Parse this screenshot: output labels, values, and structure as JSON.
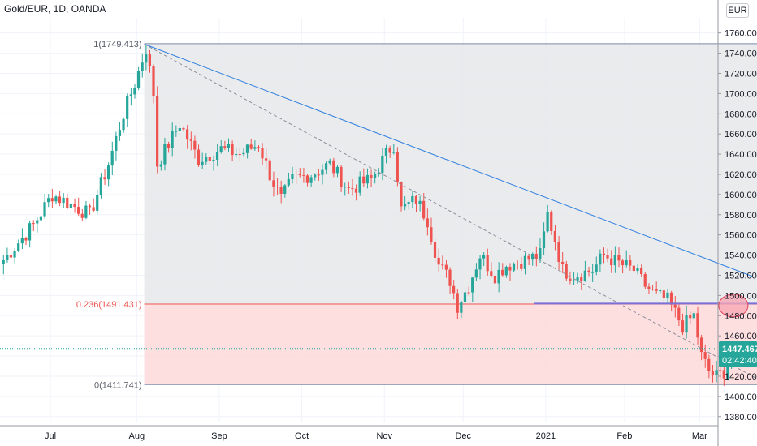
{
  "header": {
    "symbol_title": "Gold/EUR, 1D, OANDA"
  },
  "currency_button": {
    "label": "EUR"
  },
  "price_badge": {
    "price": "1447.467",
    "countdown": "02:42:40"
  },
  "colors": {
    "up": "#26a69a",
    "down": "#ef5350",
    "trendline": "#2e7fe0",
    "fib_upper_fill": "#e6e7ea",
    "fib_lower_fill": "#fddcdc",
    "fib_line_gray": "#7b8aa6",
    "fib_line_red": "#ef5350",
    "ellipse_fill": "#f6a8b4",
    "ellipse_stroke": "#e0455d",
    "support_line": "#7b6fd6",
    "badge_bg": "#26a69a"
  },
  "chart_data": {
    "type": "candlestick",
    "title": "Gold/EUR, 1D, OANDA",
    "ylim": [
      1375,
      1775
    ],
    "y_ticks": [
      "1380.000",
      "1400.000",
      "1420.000",
      "1440.000",
      "1460.000",
      "1480.000",
      "1500.000",
      "1520.000",
      "1540.000",
      "1560.000",
      "1580.000",
      "1600.000",
      "1620.000",
      "1640.000",
      "1660.000",
      "1680.000",
      "1700.000",
      "1720.000",
      "1740.000",
      "1760.000"
    ],
    "x_ticks": [
      {
        "label": "Jul",
        "index": 13
      },
      {
        "label": "Aug",
        "index": 36
      },
      {
        "label": "Sep",
        "index": 58
      },
      {
        "label": "Oct",
        "index": 80
      },
      {
        "label": "Nov",
        "index": 102
      },
      {
        "label": "Dec",
        "index": 123
      },
      {
        "label": "2021",
        "index": 145
      },
      {
        "label": "Feb",
        "index": 166
      },
      {
        "label": "Mar",
        "index": 186
      }
    ],
    "fib_levels": [
      {
        "label": "1(1749.413)",
        "value": 1749.413
      },
      {
        "label": "0.236(1491.431)",
        "value": 1491.431
      },
      {
        "label": "0(1411.741)",
        "value": 1411.741
      }
    ],
    "fib_start_index": 38,
    "fib_end_index": 204,
    "current_price": 1447.467,
    "trendline_solid": {
      "from": {
        "index": 38,
        "value": 1749
      },
      "to": {
        "index": 200,
        "value": 1519
      }
    },
    "trendline_dashed": {
      "from": {
        "index": 38,
        "value": 1749
      },
      "to": {
        "index": 204,
        "value": 1412
      }
    },
    "support_line": {
      "from": {
        "index": 142,
        "value": 1492
      },
      "to": {
        "index": 204,
        "value": 1492
      }
    },
    "highlight_ellipse": {
      "index": 195,
      "value": 1490
    },
    "anchors": [
      [
        0,
        1535
      ],
      [
        8,
        1570
      ],
      [
        13,
        1600
      ],
      [
        18,
        1590
      ],
      [
        23,
        1580
      ],
      [
        28,
        1630
      ],
      [
        32,
        1680
      ],
      [
        35,
        1710
      ],
      [
        38,
        1745
      ],
      [
        40,
        1700
      ],
      [
        41,
        1630
      ],
      [
        44,
        1650
      ],
      [
        47,
        1670
      ],
      [
        52,
        1635
      ],
      [
        58,
        1645
      ],
      [
        63,
        1640
      ],
      [
        68,
        1650
      ],
      [
        71,
        1620
      ],
      [
        74,
        1595
      ],
      [
        77,
        1615
      ],
      [
        82,
        1620
      ],
      [
        87,
        1630
      ],
      [
        92,
        1605
      ],
      [
        98,
        1615
      ],
      [
        102,
        1640
      ],
      [
        104,
        1650
      ],
      [
        106,
        1585
      ],
      [
        110,
        1595
      ],
      [
        113,
        1575
      ],
      [
        116,
        1530
      ],
      [
        119,
        1515
      ],
      [
        121,
        1490
      ],
      [
        124,
        1510
      ],
      [
        127,
        1540
      ],
      [
        131,
        1520
      ],
      [
        134,
        1530
      ],
      [
        139,
        1535
      ],
      [
        143,
        1540
      ],
      [
        145,
        1580
      ],
      [
        147,
        1555
      ],
      [
        149,
        1525
      ],
      [
        152,
        1520
      ],
      [
        157,
        1525
      ],
      [
        160,
        1540
      ],
      [
        165,
        1530
      ],
      [
        168,
        1525
      ],
      [
        171,
        1510
      ],
      [
        174,
        1500
      ],
      [
        177,
        1495
      ],
      [
        181,
        1470
      ],
      [
        184,
        1480
      ],
      [
        186,
        1440
      ],
      [
        188,
        1425
      ],
      [
        190,
        1420
      ],
      [
        192,
        1425
      ],
      [
        194,
        1447
      ]
    ]
  }
}
